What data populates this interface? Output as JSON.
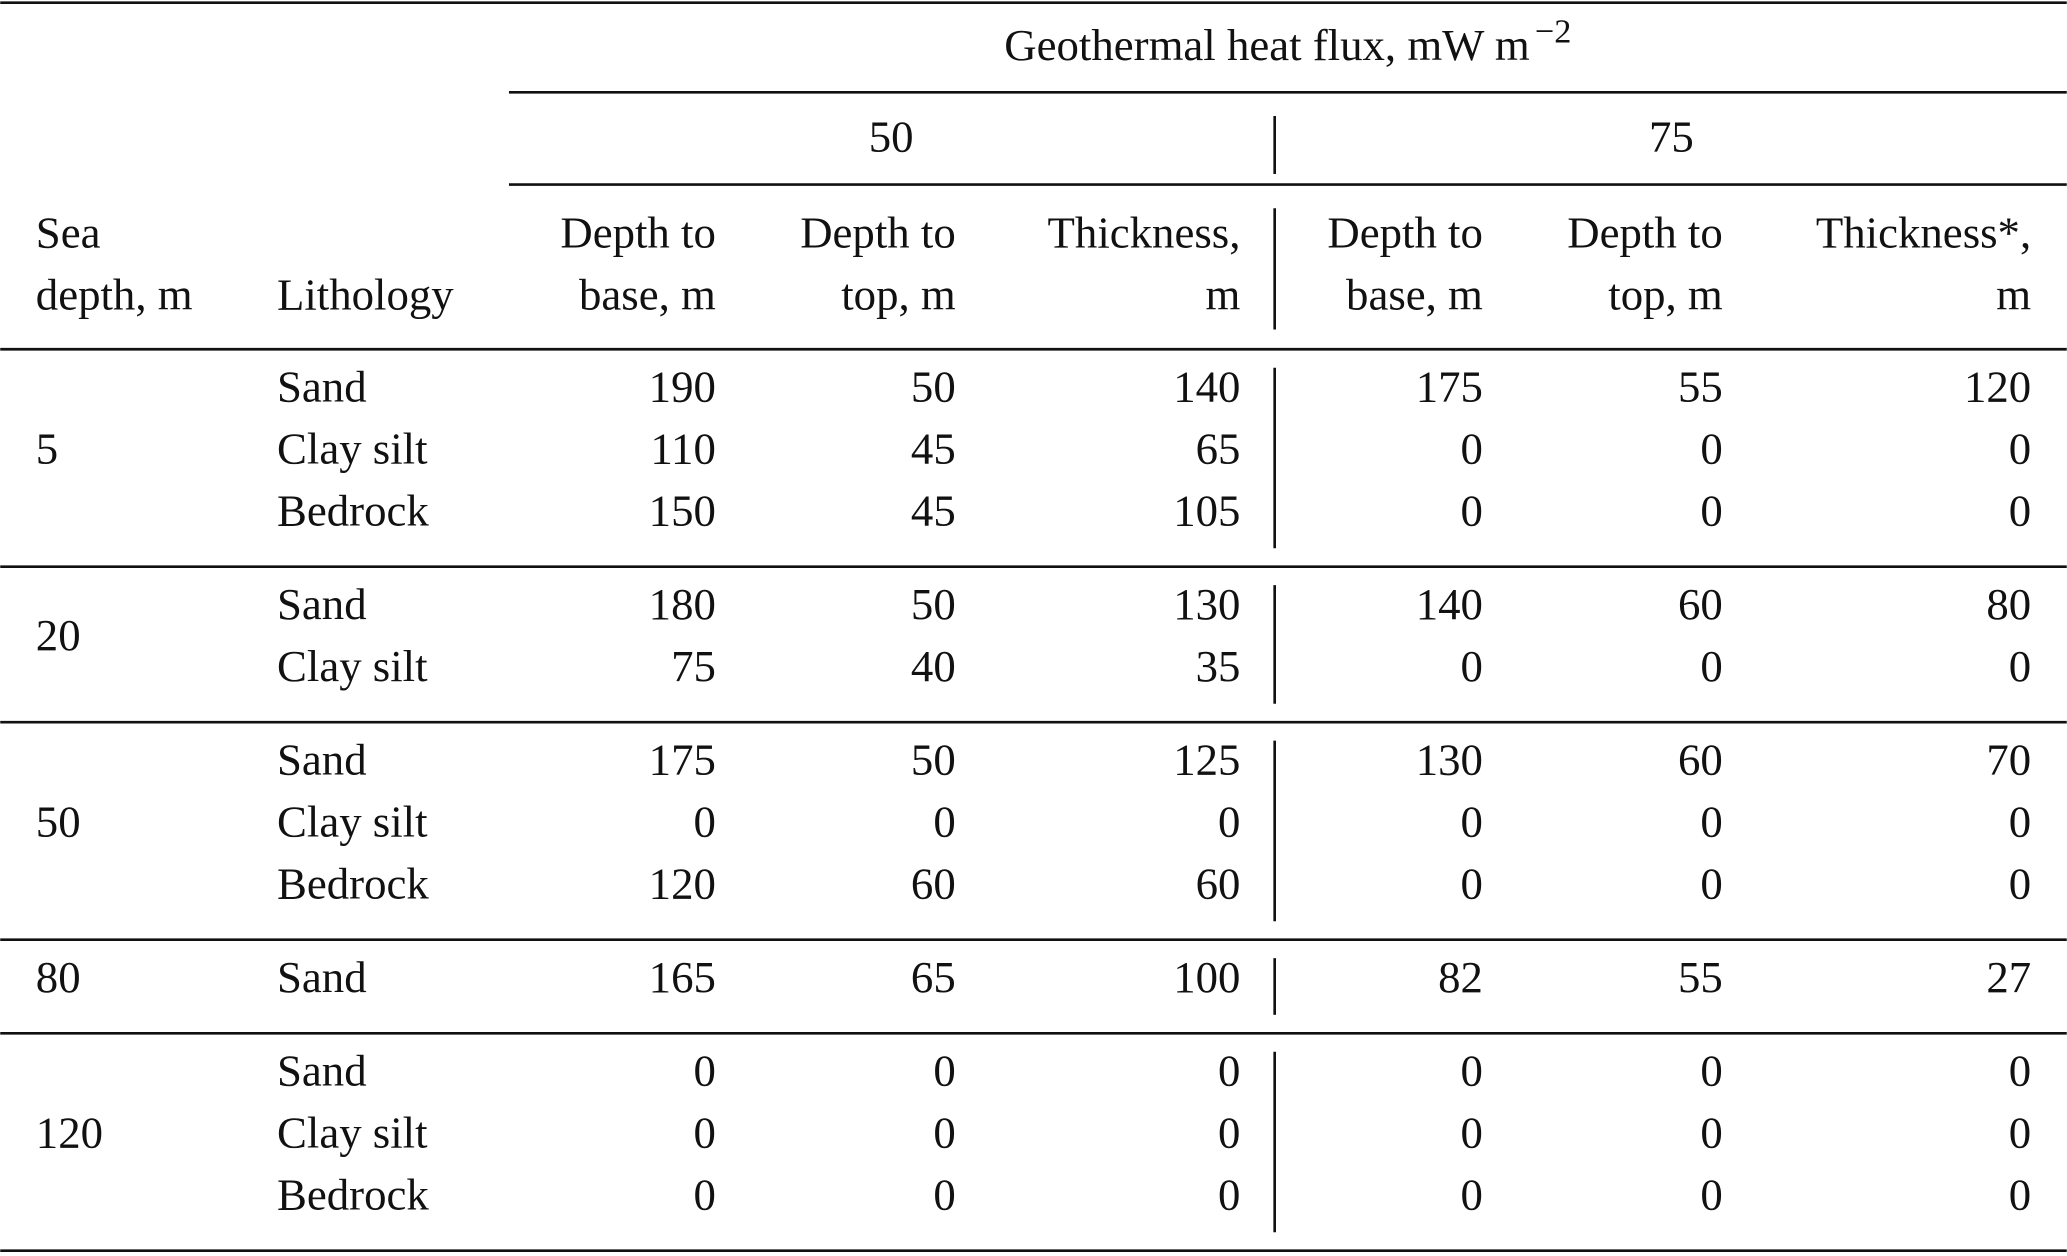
{
  "header": {
    "title": "Geothermal heat flux, mW m",
    "title_exponent": "−2",
    "flux_groups": [
      "50",
      "75"
    ],
    "columns": [
      [
        "Sea",
        "depth, m"
      ],
      [
        "Lithology"
      ],
      [
        "Depth to",
        "base, m"
      ],
      [
        "Depth to",
        "top, m"
      ],
      [
        "Thickness,",
        "m"
      ],
      [
        "Depth to",
        "base, m"
      ],
      [
        "Depth to",
        "top, m"
      ],
      [
        "Thickness*,",
        "m"
      ]
    ]
  },
  "body": [
    {
      "sea_depth": 5,
      "rows": [
        [
          "Sand",
          190,
          50,
          140,
          175,
          55,
          120
        ],
        [
          "Clay silt",
          110,
          45,
          65,
          0,
          0,
          0
        ],
        [
          "Bedrock",
          150,
          45,
          105,
          0,
          0,
          0
        ]
      ]
    },
    {
      "sea_depth": 20,
      "rows": [
        [
          "Sand",
          180,
          50,
          130,
          140,
          60,
          80
        ],
        [
          "Clay silt",
          75,
          40,
          35,
          0,
          0,
          0
        ]
      ]
    },
    {
      "sea_depth": 50,
      "rows": [
        [
          "Sand",
          175,
          50,
          125,
          130,
          60,
          70
        ],
        [
          "Clay silt",
          0,
          0,
          0,
          0,
          0,
          0
        ],
        [
          "Bedrock",
          120,
          60,
          60,
          0,
          0,
          0
        ]
      ]
    },
    {
      "sea_depth": 80,
      "rows": [
        [
          "Sand",
          165,
          65,
          100,
          82,
          55,
          27
        ]
      ]
    },
    {
      "sea_depth": 120,
      "rows": [
        [
          "Sand",
          0,
          0,
          0,
          0,
          0,
          0
        ],
        [
          "Clay silt",
          0,
          0,
          0,
          0,
          0,
          0
        ],
        [
          "Bedrock",
          0,
          0,
          0,
          0,
          0,
          0
        ]
      ]
    }
  ]
}
